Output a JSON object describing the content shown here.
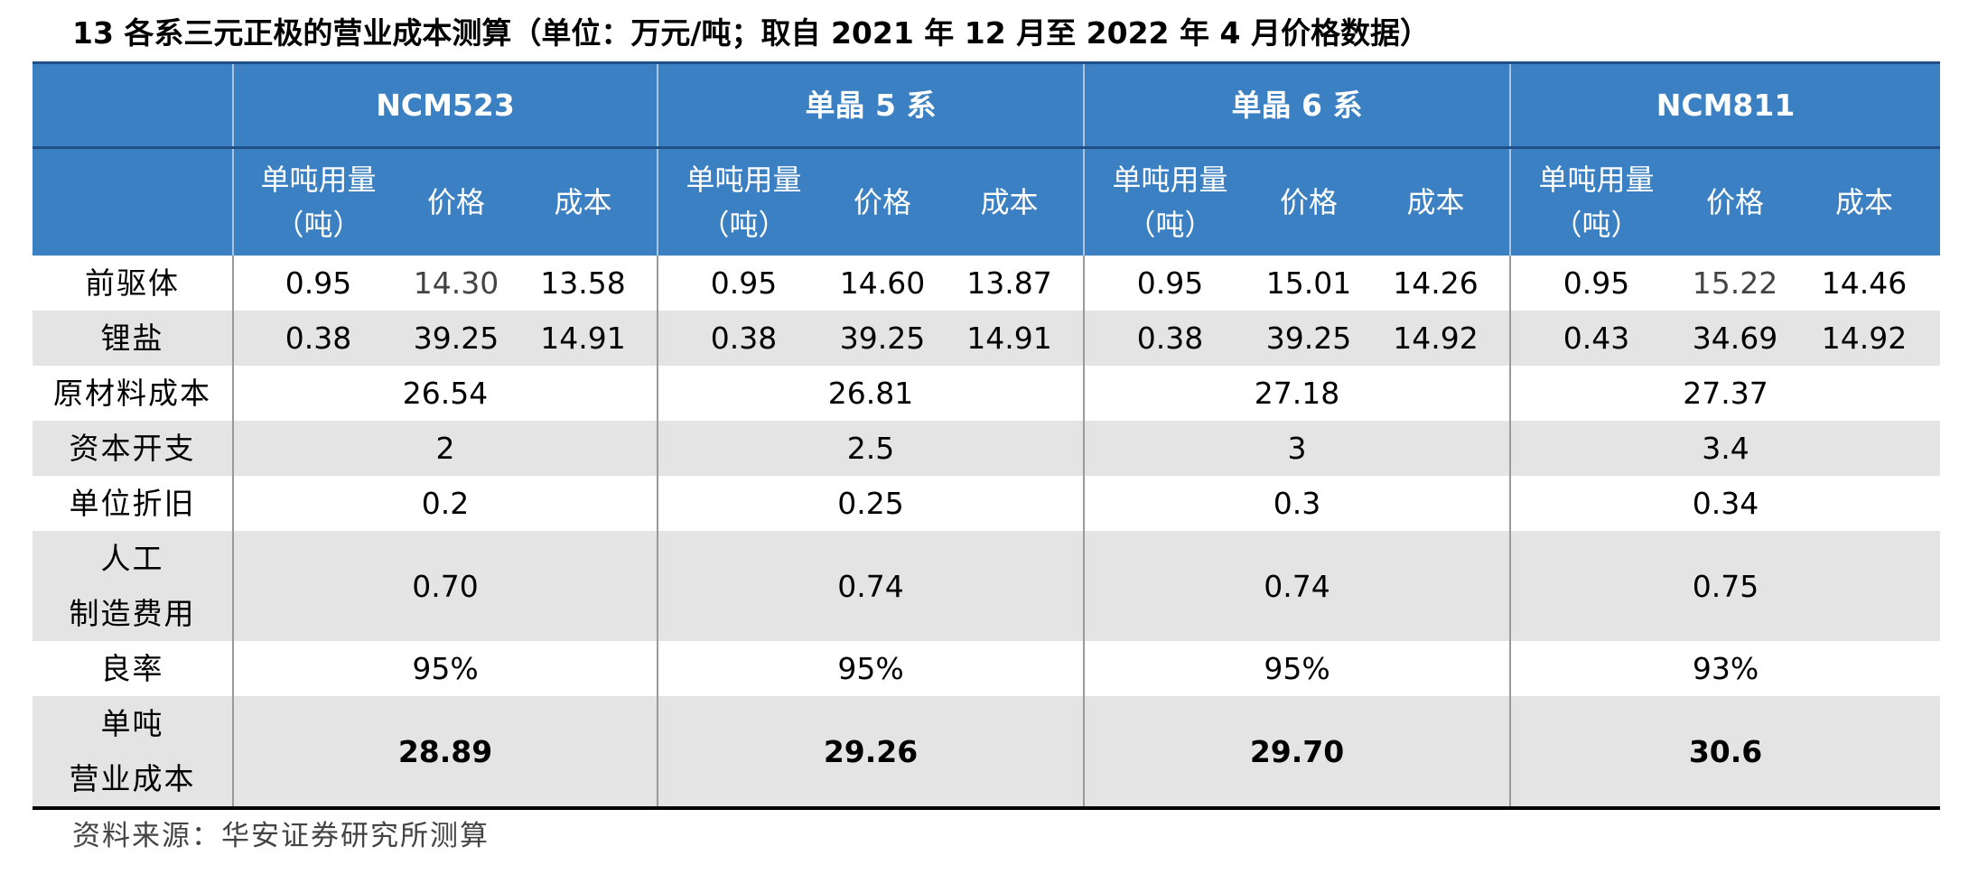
{
  "title": "13 各系三元正极的营业成本测算（单位：万元/吨；取自 2021 年 12 月至 2022 年 4 月价格数据）",
  "groups": [
    "NCM523",
    "单晶 5 系",
    "单晶 6 系",
    "NCM811"
  ],
  "subheaders": {
    "usage_line1": "单吨用量",
    "usage_line2": "（吨）",
    "price": "价格",
    "cost": "成本"
  },
  "rows": {
    "precursor": {
      "label": "前驱体",
      "values": [
        [
          "0.95",
          "14.30",
          "13.58"
        ],
        [
          "0.95",
          "14.60",
          "13.87"
        ],
        [
          "0.95",
          "15.01",
          "14.26"
        ],
        [
          "0.95",
          "15.22",
          "14.46"
        ]
      ]
    },
    "lithium": {
      "label": "锂盐",
      "values": [
        [
          "0.38",
          "39.25",
          "14.91"
        ],
        [
          "0.38",
          "39.25",
          "14.91"
        ],
        [
          "0.38",
          "39.25",
          "14.92"
        ],
        [
          "0.43",
          "34.69",
          "14.92"
        ]
      ]
    },
    "material_cost": {
      "label": "原材料成本",
      "values": [
        "26.54",
        "26.81",
        "27.18",
        "27.37"
      ]
    },
    "capex": {
      "label": "资本开支",
      "values": [
        "2",
        "2.5",
        "3",
        "3.4"
      ]
    },
    "depreciation": {
      "label": "单位折旧",
      "values": [
        "0.2",
        "0.25",
        "0.3",
        "0.34"
      ]
    },
    "labor": {
      "label_line1": "人工",
      "label_line2": "制造费用",
      "values": [
        "0.70",
        "0.74",
        "0.74",
        "0.75"
      ]
    },
    "yield": {
      "label": "良率",
      "values": [
        "95%",
        "95%",
        "95%",
        "93%"
      ]
    },
    "op_cost": {
      "label_line1": "单吨",
      "label_line2": "营业成本",
      "values": [
        "28.89",
        "29.26",
        "29.70",
        "30.6"
      ]
    }
  },
  "source": "资料来源：华安证券研究所测算",
  "colors": {
    "header_bg": "#3b80c2",
    "stripe": "#e4e4e4"
  }
}
